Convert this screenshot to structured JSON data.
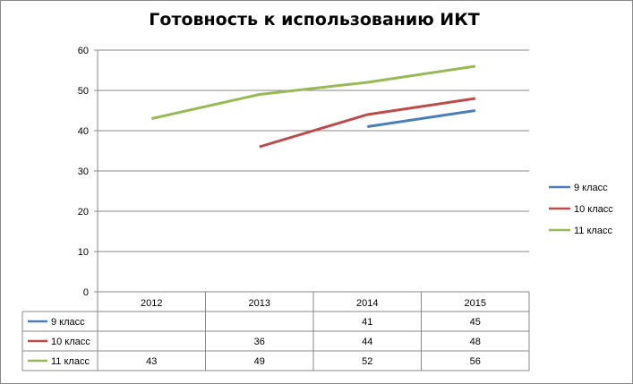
{
  "chart_data": {
    "type": "line",
    "title": "Готовность к использованию ИКТ",
    "categories": [
      "2012",
      "2013",
      "2014",
      "2015"
    ],
    "ylim": [
      0,
      60
    ],
    "yticks": [
      0,
      10,
      20,
      30,
      40,
      50,
      60
    ],
    "grid": "horizontal",
    "legend_position": "right",
    "data_table": true,
    "series": [
      {
        "name": "9 класс",
        "color": "#4a7ebb",
        "values": [
          null,
          null,
          41,
          45
        ]
      },
      {
        "name": "10 класс",
        "color": "#be4b48",
        "values": [
          null,
          36,
          44,
          48
        ]
      },
      {
        "name": "11 класс",
        "color": "#98b954",
        "values": [
          43,
          49,
          52,
          56
        ]
      }
    ]
  }
}
